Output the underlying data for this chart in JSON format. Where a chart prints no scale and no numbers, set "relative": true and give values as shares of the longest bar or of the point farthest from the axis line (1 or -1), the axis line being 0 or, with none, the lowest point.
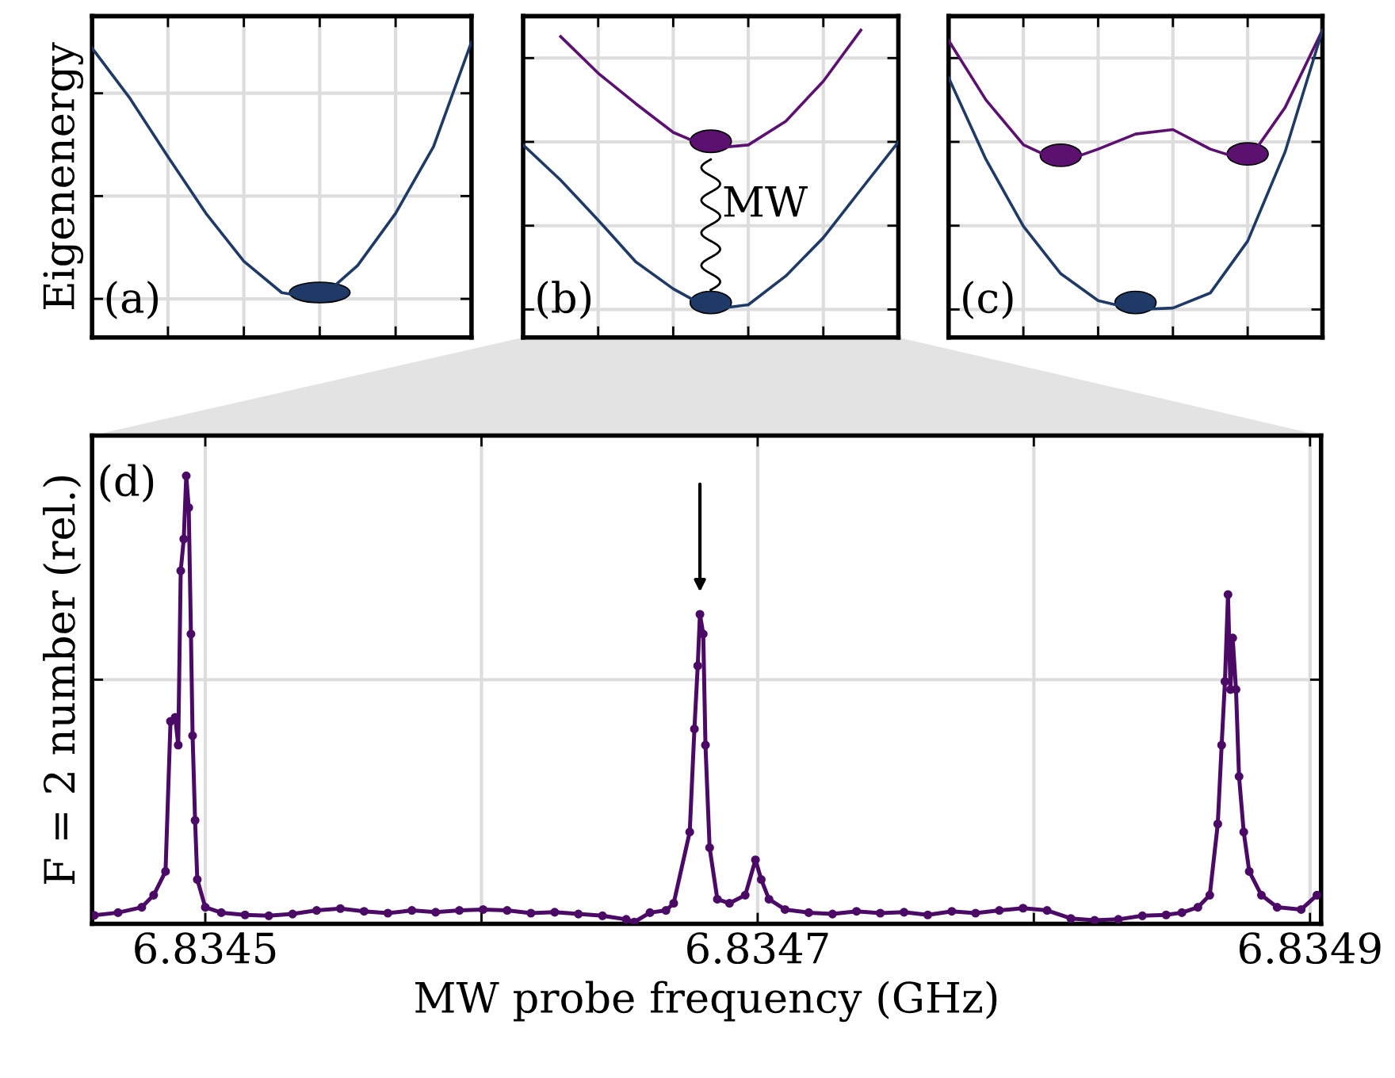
{
  "chart_data": [
    {
      "type": "line",
      "relative": true,
      "ylabel": "Eigenenergy",
      "annotations": [
        "(a)"
      ],
      "grid": true,
      "tick_labels": false,
      "categories": [
        null,
        null,
        null,
        null,
        null,
        null,
        null,
        null,
        null,
        null,
        null
      ],
      "series": [
        {
          "color": "#1f3a66",
          "values": [
            0.976,
            0.78,
            0.553,
            0.333,
            0.146,
            0.024,
            0,
            0.13,
            0.333,
            0.593,
            1.0
          ]
        }
      ]
    },
    {
      "type": "line",
      "relative": true,
      "annotations": [
        "(b)",
        "MW"
      ],
      "grid": true,
      "tick_labels": false,
      "categories": [
        null,
        null,
        null,
        null,
        null,
        null,
        null,
        null,
        null,
        null,
        null
      ],
      "series": [
        {
          "color": "#5c1070",
          "values": [
            null,
            0.977,
            0.846,
            0.737,
            0.634,
            0.577,
            0.589,
            0.674,
            0.817,
            1.0,
            null
          ]
        },
        {
          "color": "#1f3a66",
          "values": [
            0.589,
            0.463,
            0.32,
            0.171,
            0.074,
            0,
            0.017,
            0.12,
            0.257,
            0.429,
            0.6
          ]
        }
      ]
    },
    {
      "type": "line",
      "relative": true,
      "annotations": [
        "(c)"
      ],
      "grid": true,
      "tick_labels": false,
      "categories": [
        null,
        null,
        null,
        null,
        null,
        null,
        null,
        null,
        null,
        null,
        null
      ],
      "series": [
        {
          "color": "#5c1070",
          "values": [
            0.963,
            0.75,
            0.59,
            0.527,
            0.574,
            0.628,
            0.644,
            0.574,
            0.532,
            0.723,
            1.0
          ]
        },
        {
          "color": "#1f3a66",
          "values": [
            0.83,
            0.537,
            0.298,
            0.128,
            0.032,
            0,
            0.005,
            0.059,
            0.245,
            0.564,
            1.0
          ]
        }
      ]
    },
    {
      "type": "line",
      "relative": true,
      "xlabel": "MW probe frequency (GHz)",
      "ylabel": "F = 2 number (rel.)",
      "annotations": [
        "(d)"
      ],
      "grid": true,
      "marker": "circle",
      "line_style": "solid",
      "xlim": [
        6.834459,
        6.834904
      ],
      "xticks": [
        6.8345,
        {
          "value": 6.8346,
          "label": null
        },
        6.8347,
        {
          "value": 6.8348,
          "label": null
        },
        6.8349
      ],
      "series": [
        {
          "color": "#4b0a66",
          "x": [
            6.8344598,
            6.8344684,
            6.834477,
            6.8344813,
            6.8344856,
            6.8344874,
            6.8344891,
            6.8344902,
            6.8344911,
            6.8344922,
            6.8344931,
            6.834494,
            6.8344948,
            6.8344954,
            6.8344963,
            6.8344971,
            6.8345,
            6.8345058,
            6.8345144,
            6.834523,
            6.8345316,
            6.8345403,
            6.8345489,
            6.8345575,
            6.8345661,
            6.8345748,
            6.8345834,
            6.834592,
            6.8346006,
            6.8346093,
            6.8346179,
            6.8346265,
            6.8346351,
            6.8346438,
            6.8346524,
            6.8346553,
            6.834661,
            6.8346668,
            6.8346696,
            6.8346754,
            6.8346771,
            6.8346783,
            6.8346791,
            6.8346803,
            6.8346811,
            6.8346826,
            6.8346854,
            6.8346898,
            6.8346955,
            6.8346992,
            6.8347013,
            6.8347041,
            6.8347099,
            6.8347185,
            6.8347271,
            6.8347358,
            6.8347444,
            6.834753,
            6.8347616,
            6.8347703,
            6.8347789,
            6.8347875,
            6.8347961,
            6.8348048,
            6.8348134,
            6.834822,
            6.8348306,
            6.8348393,
            6.8348479,
            6.8348536,
            6.8348594,
            6.8348637,
            6.8348666,
            6.834868,
            6.8348692,
            6.8348703,
            6.8348712,
            6.834872,
            6.8348732,
            6.8348743,
            6.834876,
            6.834878,
            6.8348824,
            6.8348881,
            6.8348968,
            6.8349025
          ],
          "values": [
            0.019,
            0.025,
            0.037,
            0.064,
            0.117,
            0.452,
            0.461,
            0.399,
            0.788,
            0.859,
            1.0,
            0.929,
            0.647,
            0.42,
            0.231,
            0.099,
            0.037,
            0.025,
            0.02,
            0.018,
            0.022,
            0.03,
            0.034,
            0.028,
            0.024,
            0.03,
            0.026,
            0.03,
            0.032,
            0.03,
            0.024,
            0.026,
            0.022,
            0.018,
            0.01,
            0.004,
            0.025,
            0.03,
            0.046,
            0.205,
            0.435,
            0.576,
            0.691,
            0.647,
            0.399,
            0.17,
            0.055,
            0.046,
            0.064,
            0.143,
            0.099,
            0.055,
            0.032,
            0.025,
            0.022,
            0.028,
            0.024,
            0.026,
            0.02,
            0.028,
            0.024,
            0.03,
            0.035,
            0.03,
            0.012,
            0.008,
            0.01,
            0.018,
            0.02,
            0.025,
            0.037,
            0.064,
            0.223,
            0.399,
            0.541,
            0.735,
            0.523,
            0.638,
            0.523,
            0.329,
            0.205,
            0.117,
            0.064,
            0.037,
            0.032,
            0.064
          ]
        }
      ]
    }
  ]
}
